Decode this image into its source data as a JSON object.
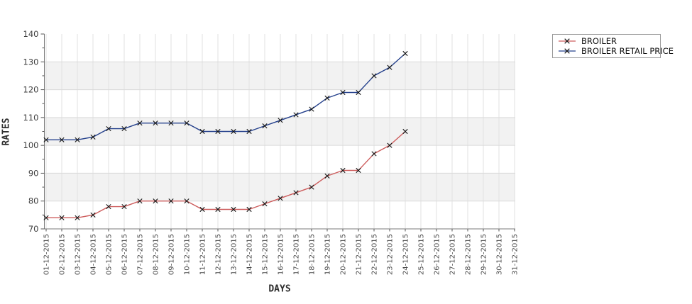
{
  "chart_data": {
    "type": "line",
    "title": "",
    "xlabel": "DAYS",
    "ylabel": "RATES",
    "ylim": [
      70,
      140
    ],
    "y_ticks": [
      70,
      80,
      90,
      100,
      110,
      120,
      130,
      140
    ],
    "grid": true,
    "band_ranges": [
      [
        80,
        90
      ],
      [
        100,
        110
      ],
      [
        120,
        130
      ]
    ],
    "band_color": "#f2f2f2",
    "legend_position": "top-right",
    "marker": "x",
    "marker_color": "#161616",
    "categories": [
      "01-12-2015",
      "02-12-2015",
      "03-12-2015",
      "04-12-2015",
      "05-12-2015",
      "06-12-2015",
      "07-12-2015",
      "08-12-2015",
      "09-12-2015",
      "10-12-2015",
      "11-12-2015",
      "12-12-2015",
      "13-12-2015",
      "14-12-2015",
      "15-12-2015",
      "16-12-2015",
      "17-12-2015",
      "18-12-2015",
      "19-12-2015",
      "20-12-2015",
      "21-12-2015",
      "22-12-2015",
      "23-12-2015",
      "24-12-2015",
      "25-12-2015",
      "26-12-2015",
      "27-12-2015",
      "28-12-2015",
      "29-12-2015",
      "30-12-2015",
      "31-12-2015"
    ],
    "series": [
      {
        "name": "BROILER",
        "color": "#cd5c5c",
        "values": [
          74,
          74,
          74,
          75,
          78,
          78,
          80,
          80,
          80,
          80,
          77,
          77,
          77,
          77,
          79,
          81,
          83,
          85,
          89,
          91,
          91,
          97,
          100,
          105
        ]
      },
      {
        "name": "BROILER RETAIL PRICE",
        "color": "#24408c",
        "values": [
          102,
          102,
          102,
          103,
          106,
          106,
          108,
          108,
          108,
          108,
          105,
          105,
          105,
          105,
          107,
          109,
          111,
          113,
          117,
          119,
          119,
          125,
          128,
          133
        ]
      }
    ]
  }
}
